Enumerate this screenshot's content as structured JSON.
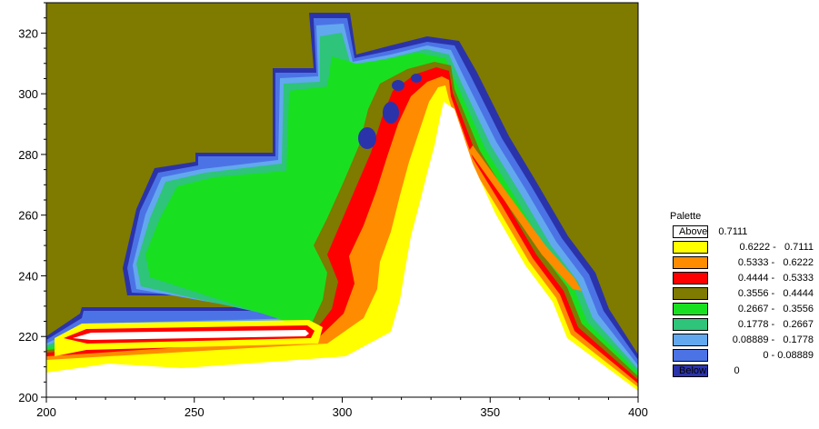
{
  "map": {
    "colors": {
      "land": "#7f7a00",
      "below": "#2b33aa",
      "c0": "#4c73e6",
      "c1": "#62a8ee",
      "c2": "#2ec47a",
      "c3": "#18e020",
      "c4": "#7f7a00",
      "c5": "#ff0000",
      "c6": "#ff8c00",
      "c7": "#ffff00",
      "above": "#ffffff"
    },
    "x_axis": {
      "min": 200,
      "max": 400,
      "ticks": [
        "200",
        "250",
        "300",
        "350",
        "400"
      ]
    },
    "y_axis": {
      "min": 200,
      "max": 330,
      "ticks": [
        "200",
        "220",
        "240",
        "260",
        "280",
        "300",
        "320"
      ]
    }
  },
  "legend": {
    "title": "Palette",
    "entries": [
      {
        "label": "Above    0.7111",
        "color": "#ffffff",
        "align": "split"
      },
      {
        "label": "0.6222 -   0.7111",
        "color": "#ffff00"
      },
      {
        "label": "0.5333 -   0.6222",
        "color": "#ff8c00"
      },
      {
        "label": "0.4444 -   0.5333",
        "color": "#ff0000"
      },
      {
        "label": "0.3556 -   0.4444",
        "color": "#7f7a00"
      },
      {
        "label": "0.2667 -   0.3556",
        "color": "#18e020"
      },
      {
        "label": "0.1778 -   0.2667",
        "color": "#2ec47a"
      },
      {
        "label": "0.08889 -   0.1778",
        "color": "#62a8ee"
      },
      {
        "label": "0 - 0.08889",
        "color": "#4c73e6"
      },
      {
        "label": "Below          0",
        "color": "#2b33aa",
        "align": "split"
      }
    ]
  }
}
